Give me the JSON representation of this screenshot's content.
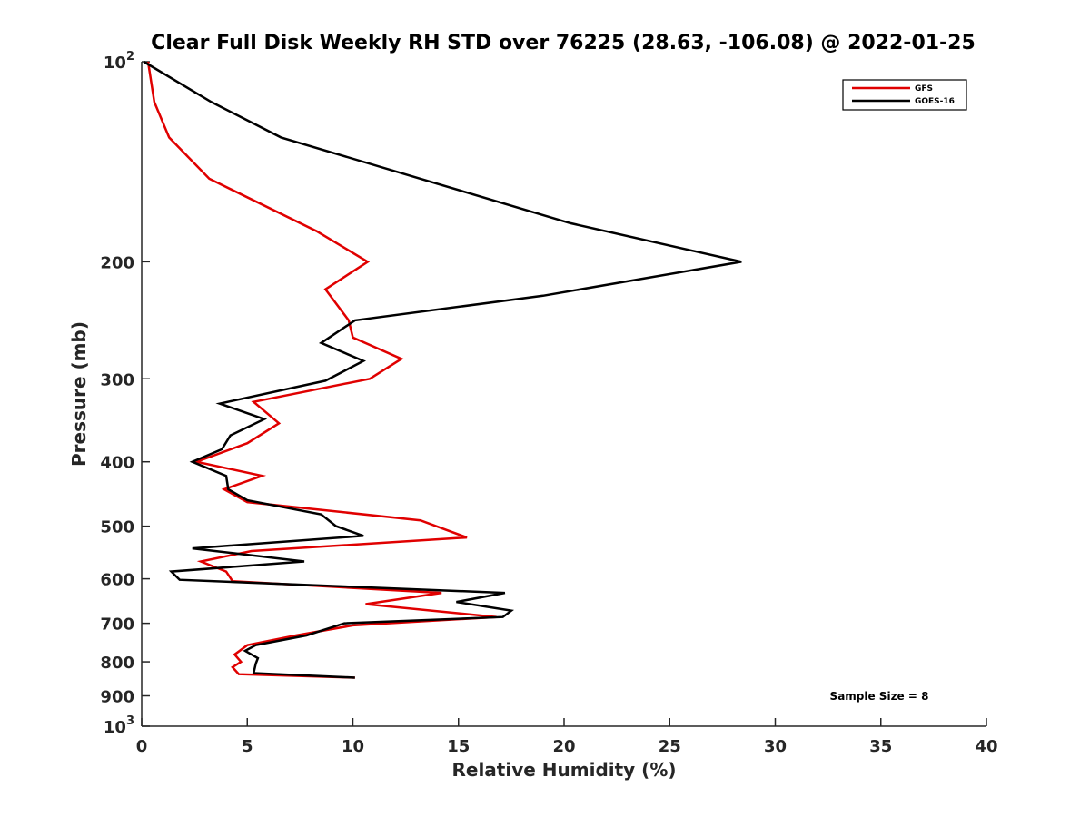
{
  "chart_data": {
    "type": "line",
    "title": "Clear Full Disk Weekly RH STD over 76225 (28.63, -106.08) @ 2022-01-25",
    "xlabel": "Relative Humidity (%)",
    "ylabel": "Pressure (mb)",
    "xlim": [
      0,
      40
    ],
    "ylim": [
      100,
      1000
    ],
    "y_scale": "log",
    "y_reversed": true,
    "grid": false,
    "legend_position": "top-right",
    "x_ticks": [
      0,
      5,
      10,
      15,
      20,
      25,
      30,
      35,
      40
    ],
    "y_ticks": [
      {
        "value": 100,
        "label": "10",
        "sup": "2"
      },
      {
        "value": 200,
        "label": "200",
        "sup": ""
      },
      {
        "value": 300,
        "label": "300",
        "sup": ""
      },
      {
        "value": 400,
        "label": "400",
        "sup": ""
      },
      {
        "value": 500,
        "label": "500",
        "sup": ""
      },
      {
        "value": 600,
        "label": "600",
        "sup": ""
      },
      {
        "value": 700,
        "label": "700",
        "sup": ""
      },
      {
        "value": 800,
        "label": "800",
        "sup": ""
      },
      {
        "value": 900,
        "label": "900",
        "sup": ""
      },
      {
        "value": 1000,
        "label": "10",
        "sup": "3"
      }
    ],
    "annotation": "Sample Size = 8",
    "series": [
      {
        "name": "GFS",
        "color": "#e00000",
        "points": [
          [
            0.3,
            100
          ],
          [
            0.6,
            115
          ],
          [
            1.3,
            130
          ],
          [
            3.2,
            150
          ],
          [
            8.3,
            180
          ],
          [
            10.7,
            200
          ],
          [
            8.7,
            220
          ],
          [
            9.8,
            245
          ],
          [
            10.0,
            260
          ],
          [
            12.3,
            280
          ],
          [
            10.8,
            300
          ],
          [
            5.3,
            325
          ],
          [
            6.5,
            350
          ],
          [
            5.0,
            375
          ],
          [
            2.6,
            400
          ],
          [
            5.7,
            420
          ],
          [
            3.9,
            440
          ],
          [
            5.0,
            460
          ],
          [
            13.2,
            490
          ],
          [
            15.4,
            520
          ],
          [
            5.2,
            545
          ],
          [
            2.8,
            565
          ],
          [
            4.0,
            585
          ],
          [
            4.3,
            605
          ],
          [
            14.2,
            630
          ],
          [
            10.6,
            655
          ],
          [
            16.8,
            685
          ],
          [
            10.0,
            705
          ],
          [
            7.3,
            730
          ],
          [
            5.0,
            755
          ],
          [
            4.4,
            780
          ],
          [
            4.7,
            800
          ],
          [
            4.3,
            815
          ],
          [
            4.6,
            835
          ],
          [
            10.1,
            845
          ]
        ]
      },
      {
        "name": "GOES-16",
        "color": "#000000",
        "points": [
          [
            0.1,
            100
          ],
          [
            3.3,
            115
          ],
          [
            6.6,
            130
          ],
          [
            13.2,
            150
          ],
          [
            20.3,
            175
          ],
          [
            28.4,
            200
          ],
          [
            19.0,
            225
          ],
          [
            10.1,
            245
          ],
          [
            8.5,
            265
          ],
          [
            10.5,
            282
          ],
          [
            8.7,
            302
          ],
          [
            3.7,
            327
          ],
          [
            5.8,
            345
          ],
          [
            4.2,
            365
          ],
          [
            3.8,
            383
          ],
          [
            2.4,
            400
          ],
          [
            4.0,
            420
          ],
          [
            4.1,
            440
          ],
          [
            5.0,
            457
          ],
          [
            8.5,
            480
          ],
          [
            9.2,
            500
          ],
          [
            10.5,
            517
          ],
          [
            2.4,
            540
          ],
          [
            7.7,
            565
          ],
          [
            1.4,
            585
          ],
          [
            1.8,
            602
          ],
          [
            17.2,
            630
          ],
          [
            14.9,
            650
          ],
          [
            17.5,
            670
          ],
          [
            17.1,
            685
          ],
          [
            9.6,
            700
          ],
          [
            7.8,
            730
          ],
          [
            5.4,
            755
          ],
          [
            4.9,
            770
          ],
          [
            5.5,
            790
          ],
          [
            5.4,
            805
          ],
          [
            5.3,
            832
          ],
          [
            10.1,
            845
          ]
        ]
      }
    ]
  }
}
